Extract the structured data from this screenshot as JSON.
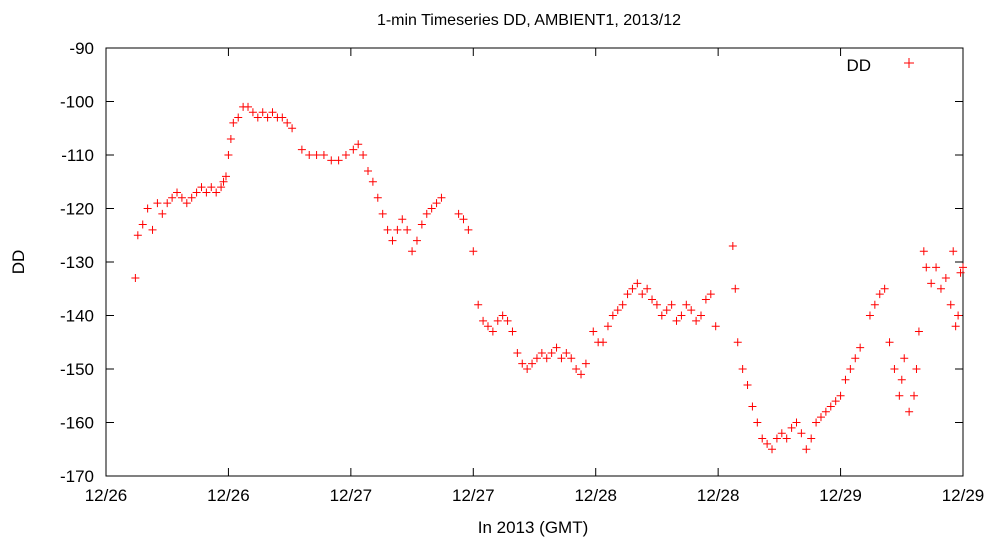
{
  "chart_data": {
    "type": "scatter",
    "title": "1-min Timeseries DD, AMBIENT1, 2013/12",
    "xlabel": "In 2013 (GMT)",
    "ylabel": "DD",
    "xlim": [
      0,
      3.5
    ],
    "ylim": [
      -170,
      -90
    ],
    "x_ticks": [
      {
        "value": 0.0,
        "label": "12/26"
      },
      {
        "value": 0.5,
        "label": "12/26"
      },
      {
        "value": 1.0,
        "label": "12/27"
      },
      {
        "value": 1.5,
        "label": "12/27"
      },
      {
        "value": 2.0,
        "label": "12/28"
      },
      {
        "value": 2.5,
        "label": "12/28"
      },
      {
        "value": 3.0,
        "label": "12/29"
      },
      {
        "value": 3.5,
        "label": "12/29"
      }
    ],
    "y_ticks": [
      -90,
      -100,
      -110,
      -120,
      -130,
      -140,
      -150,
      -160,
      -170
    ],
    "legend_position": "top-right",
    "grid": false,
    "series": [
      {
        "name": "DD",
        "color": "#ff0000",
        "marker": "plus",
        "points": [
          [
            0.12,
            -133
          ],
          [
            0.13,
            -125
          ],
          [
            0.15,
            -123
          ],
          [
            0.17,
            -120
          ],
          [
            0.19,
            -124
          ],
          [
            0.21,
            -119
          ],
          [
            0.23,
            -121
          ],
          [
            0.25,
            -119
          ],
          [
            0.27,
            -118
          ],
          [
            0.29,
            -117
          ],
          [
            0.31,
            -118
          ],
          [
            0.33,
            -119
          ],
          [
            0.35,
            -118
          ],
          [
            0.37,
            -117
          ],
          [
            0.39,
            -116
          ],
          [
            0.41,
            -117
          ],
          [
            0.43,
            -116
          ],
          [
            0.45,
            -117
          ],
          [
            0.47,
            -116
          ],
          [
            0.48,
            -115
          ],
          [
            0.49,
            -114
          ],
          [
            0.5,
            -110
          ],
          [
            0.51,
            -107
          ],
          [
            0.52,
            -104
          ],
          [
            0.54,
            -103
          ],
          [
            0.56,
            -101
          ],
          [
            0.58,
            -101
          ],
          [
            0.6,
            -102
          ],
          [
            0.62,
            -103
          ],
          [
            0.64,
            -102
          ],
          [
            0.66,
            -103
          ],
          [
            0.68,
            -102
          ],
          [
            0.7,
            -103
          ],
          [
            0.72,
            -103
          ],
          [
            0.74,
            -104
          ],
          [
            0.76,
            -105
          ],
          [
            0.8,
            -109
          ],
          [
            0.83,
            -110
          ],
          [
            0.86,
            -110
          ],
          [
            0.89,
            -110
          ],
          [
            0.92,
            -111
          ],
          [
            0.95,
            -111
          ],
          [
            0.98,
            -110
          ],
          [
            1.01,
            -109
          ],
          [
            1.03,
            -108
          ],
          [
            1.05,
            -110
          ],
          [
            1.07,
            -113
          ],
          [
            1.09,
            -115
          ],
          [
            1.11,
            -118
          ],
          [
            1.13,
            -121
          ],
          [
            1.15,
            -124
          ],
          [
            1.17,
            -126
          ],
          [
            1.19,
            -124
          ],
          [
            1.21,
            -122
          ],
          [
            1.23,
            -124
          ],
          [
            1.25,
            -128
          ],
          [
            1.27,
            -126
          ],
          [
            1.29,
            -123
          ],
          [
            1.31,
            -121
          ],
          [
            1.33,
            -120
          ],
          [
            1.35,
            -119
          ],
          [
            1.37,
            -118
          ],
          [
            1.44,
            -121
          ],
          [
            1.46,
            -122
          ],
          [
            1.48,
            -124
          ],
          [
            1.5,
            -128
          ],
          [
            1.52,
            -138
          ],
          [
            1.54,
            -141
          ],
          [
            1.56,
            -142
          ],
          [
            1.58,
            -143
          ],
          [
            1.6,
            -141
          ],
          [
            1.62,
            -140
          ],
          [
            1.64,
            -141
          ],
          [
            1.66,
            -143
          ],
          [
            1.68,
            -147
          ],
          [
            1.7,
            -149
          ],
          [
            1.72,
            -150
          ],
          [
            1.74,
            -149
          ],
          [
            1.76,
            -148
          ],
          [
            1.78,
            -147
          ],
          [
            1.8,
            -148
          ],
          [
            1.82,
            -147
          ],
          [
            1.84,
            -146
          ],
          [
            1.86,
            -148
          ],
          [
            1.88,
            -147
          ],
          [
            1.9,
            -148
          ],
          [
            1.92,
            -150
          ],
          [
            1.94,
            -151
          ],
          [
            1.96,
            -149
          ],
          [
            1.99,
            -143
          ],
          [
            2.01,
            -145
          ],
          [
            2.03,
            -145
          ],
          [
            2.05,
            -142
          ],
          [
            2.07,
            -140
          ],
          [
            2.09,
            -139
          ],
          [
            2.11,
            -138
          ],
          [
            2.13,
            -136
          ],
          [
            2.15,
            -135
          ],
          [
            2.17,
            -134
          ],
          [
            2.19,
            -136
          ],
          [
            2.21,
            -135
          ],
          [
            2.23,
            -137
          ],
          [
            2.25,
            -138
          ],
          [
            2.27,
            -140
          ],
          [
            2.29,
            -139
          ],
          [
            2.31,
            -138
          ],
          [
            2.33,
            -141
          ],
          [
            2.35,
            -140
          ],
          [
            2.37,
            -138
          ],
          [
            2.39,
            -139
          ],
          [
            2.41,
            -141
          ],
          [
            2.43,
            -140
          ],
          [
            2.45,
            -137
          ],
          [
            2.47,
            -136
          ],
          [
            2.49,
            -142
          ],
          [
            2.56,
            -127
          ],
          [
            2.57,
            -135
          ],
          [
            2.58,
            -145
          ],
          [
            2.6,
            -150
          ],
          [
            2.62,
            -153
          ],
          [
            2.64,
            -157
          ],
          [
            2.66,
            -160
          ],
          [
            2.68,
            -163
          ],
          [
            2.7,
            -164
          ],
          [
            2.72,
            -165
          ],
          [
            2.74,
            -163
          ],
          [
            2.76,
            -162
          ],
          [
            2.78,
            -163
          ],
          [
            2.8,
            -161
          ],
          [
            2.82,
            -160
          ],
          [
            2.84,
            -162
          ],
          [
            2.86,
            -165
          ],
          [
            2.88,
            -163
          ],
          [
            2.9,
            -160
          ],
          [
            2.92,
            -159
          ],
          [
            2.94,
            -158
          ],
          [
            2.96,
            -157
          ],
          [
            2.98,
            -156
          ],
          [
            3.0,
            -155
          ],
          [
            3.02,
            -152
          ],
          [
            3.04,
            -150
          ],
          [
            3.06,
            -148
          ],
          [
            3.08,
            -146
          ],
          [
            3.12,
            -140
          ],
          [
            3.14,
            -138
          ],
          [
            3.16,
            -136
          ],
          [
            3.18,
            -135
          ],
          [
            3.2,
            -145
          ],
          [
            3.22,
            -150
          ],
          [
            3.24,
            -155
          ],
          [
            3.25,
            -152
          ],
          [
            3.26,
            -148
          ],
          [
            3.28,
            -158
          ],
          [
            3.3,
            -155
          ],
          [
            3.31,
            -150
          ],
          [
            3.32,
            -143
          ],
          [
            3.34,
            -128
          ],
          [
            3.35,
            -131
          ],
          [
            3.37,
            -134
          ],
          [
            3.39,
            -131
          ],
          [
            3.41,
            -135
          ],
          [
            3.43,
            -133
          ],
          [
            3.45,
            -138
          ],
          [
            3.46,
            -128
          ],
          [
            3.47,
            -142
          ],
          [
            3.48,
            -140
          ],
          [
            3.49,
            -132
          ],
          [
            3.5,
            -131
          ]
        ]
      }
    ]
  }
}
